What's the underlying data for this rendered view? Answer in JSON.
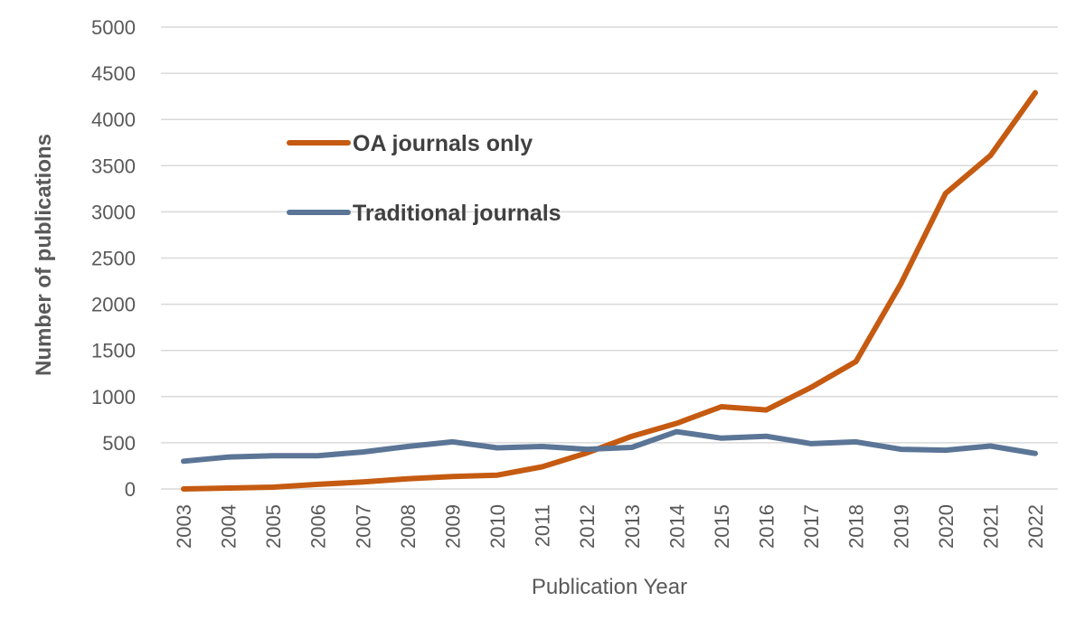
{
  "chart_data": {
    "type": "line",
    "title": "",
    "xlabel": "Publication Year",
    "ylabel": "Number of publications",
    "ylim": [
      0,
      5000
    ],
    "yticks": [
      0,
      500,
      1000,
      1500,
      2000,
      2500,
      3000,
      3500,
      4000,
      4500,
      5000
    ],
    "grid": true,
    "legend_position": "upper-left-inside",
    "categories": [
      "2003",
      "2004",
      "2005",
      "2006",
      "2007",
      "2008",
      "2009",
      "2010",
      "2011",
      "2012",
      "2013",
      "2014",
      "2015",
      "2016",
      "2017",
      "2018",
      "2019",
      "2020",
      "2021",
      "2022"
    ],
    "series": [
      {
        "name": "OA journals only",
        "color": "#c55a11",
        "values": [
          0,
          10,
          20,
          50,
          75,
          110,
          135,
          150,
          240,
          390,
          570,
          710,
          890,
          855,
          1100,
          1380,
          2220,
          3200,
          3610,
          4290
        ]
      },
      {
        "name": "Traditional journals",
        "color": "#5b7596",
        "values": [
          300,
          345,
          360,
          360,
          400,
          460,
          510,
          445,
          460,
          430,
          450,
          620,
          550,
          570,
          490,
          510,
          430,
          420,
          465,
          385
        ]
      }
    ]
  }
}
